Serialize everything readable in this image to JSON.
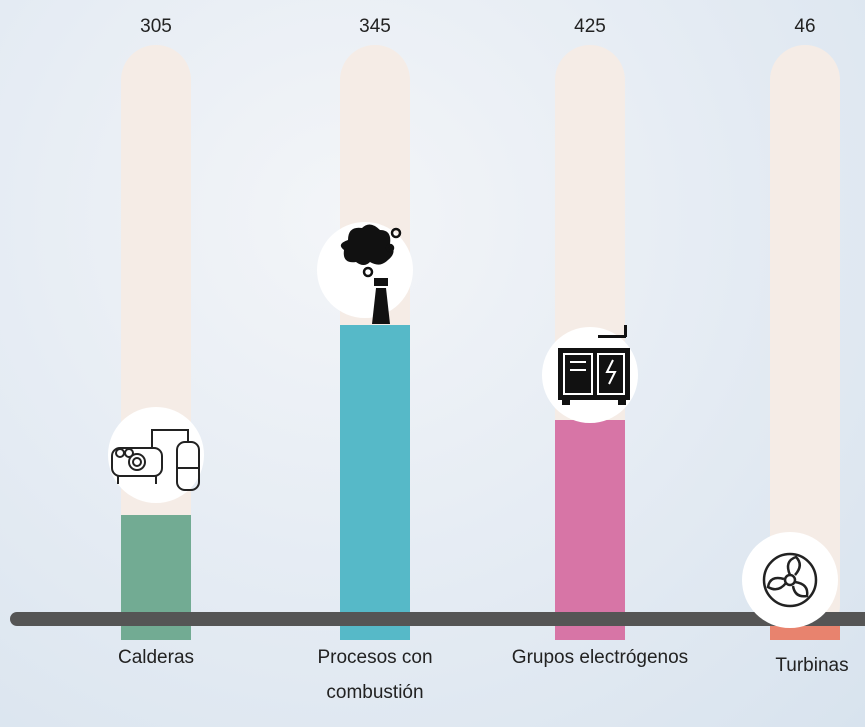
{
  "items": [
    {
      "value": "305",
      "label": [
        "Calderas"
      ]
    },
    {
      "value": "345",
      "label": [
        "Procesos con",
        "combustión"
      ]
    },
    {
      "value": "425",
      "label": [
        "Grupos electrógenos"
      ]
    },
    {
      "value": "46",
      "label": [
        "Turbinas"
      ]
    }
  ]
}
